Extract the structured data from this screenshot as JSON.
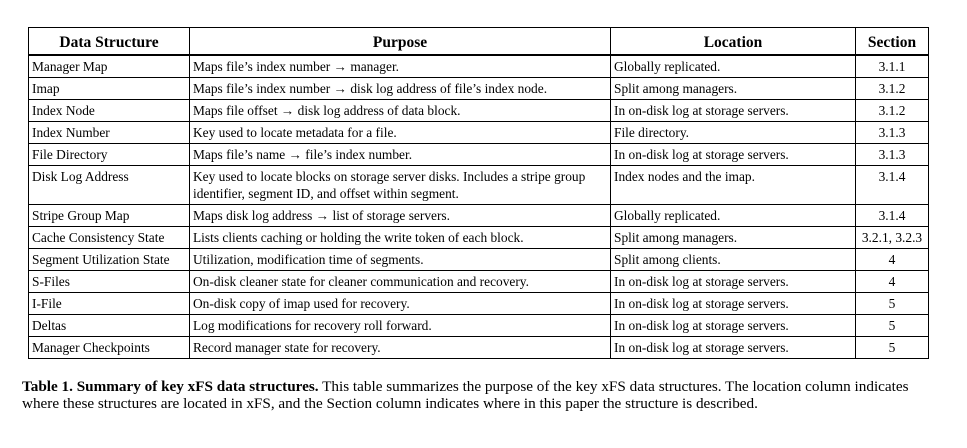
{
  "table": {
    "headers": [
      "Data Structure",
      "Purpose",
      "Location",
      "Section"
    ],
    "rows": [
      [
        "Manager Map",
        "Maps file’s index number → manager.",
        "Globally replicated.",
        "3.1.1"
      ],
      [
        "Imap",
        "Maps file’s index number → disk log address of file’s index node.",
        "Split among managers.",
        "3.1.2"
      ],
      [
        "Index Node",
        "Maps file offset → disk log address of data block.",
        "In on-disk log at storage servers.",
        "3.1.2"
      ],
      [
        "Index Number",
        "Key used to locate metadata for a file.",
        "File directory.",
        "3.1.3"
      ],
      [
        "File Directory",
        "Maps file’s name → file’s index number.",
        "In on-disk log at storage servers.",
        "3.1.3"
      ],
      [
        "Disk Log Address",
        "Key used to locate blocks on storage server disks. Includes a stripe group identifier, segment ID, and offset within segment.",
        "Index nodes and the imap.",
        "3.1.4"
      ],
      [
        "Stripe Group Map",
        "Maps disk log address → list of storage servers.",
        "Globally replicated.",
        "3.1.4"
      ],
      [
        "Cache Consistency State",
        "Lists clients caching or holding the write token of each block.",
        "Split among managers.",
        "3.2.1, 3.2.3"
      ],
      [
        "Segment Utilization State",
        "Utilization, modification time of segments.",
        "Split among clients.",
        "4"
      ],
      [
        "S-Files",
        "On-disk cleaner state for cleaner communication and recovery.",
        "In on-disk log at storage servers.",
        "4"
      ],
      [
        "I-File",
        "On-disk copy of imap used for recovery.",
        "In on-disk log at storage servers.",
        "5"
      ],
      [
        "Deltas",
        "Log modifications for recovery roll forward.",
        "In on-disk log at storage servers.",
        "5"
      ],
      [
        "Manager Checkpoints",
        "Record manager state for recovery.",
        "In on-disk log at storage servers.",
        "5"
      ]
    ]
  },
  "caption": {
    "label": "Table 1. Summary of key xFS data structures.",
    "text": " This table summarizes the purpose of the key xFS data structures. The location column indicates where these structures are located in xFS, and the Section column indicates where in this paper the structure is described."
  }
}
